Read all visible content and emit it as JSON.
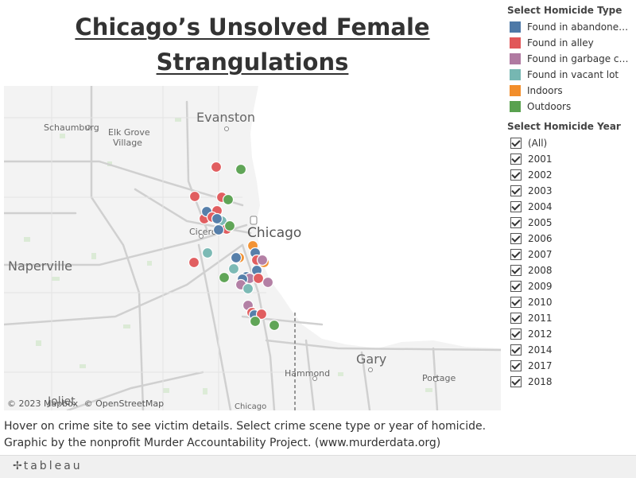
{
  "title": {
    "line1": "Chicago’s Unsolved Female ",
    "line2": "Strangulations"
  },
  "map": {
    "attribution": {
      "mapbox": "© 2023 Mapbox",
      "osm": "© OpenStreetMap"
    },
    "place_labels": {
      "evanston": "Evanston",
      "schaumburg": "Schaumburg",
      "elk_grove": "Elk Grove",
      "village": "Village",
      "cicero": "Cicero",
      "chicago": "Chicago",
      "naperville": "Naperville",
      "gary": "Gary",
      "hammond": "Hammond",
      "portage": "Portage",
      "chicago_heights": "Chicago",
      "joliet": "Joliet"
    }
  },
  "type_legend": {
    "title": "Select Homicide Type",
    "items": [
      {
        "label": "Found in abandoned ...",
        "color": "#4e79a7"
      },
      {
        "label": "Found in alley",
        "color": "#e15759"
      },
      {
        "label": "Found in garbage can",
        "color": "#b07aa1"
      },
      {
        "label": "Found in vacant lot",
        "color": "#76b7b2"
      },
      {
        "label": "Indoors",
        "color": "#f28e2b"
      },
      {
        "label": "Outdoors",
        "color": "#59a14f"
      }
    ]
  },
  "year_filter": {
    "title": "Select Homicide Year",
    "items": [
      "(All)",
      "2001",
      "2002",
      "2003",
      "2004",
      "2005",
      "2006",
      "2007",
      "2008",
      "2009",
      "2010",
      "2011",
      "2012",
      "2014",
      "2017",
      "2018"
    ]
  },
  "caption": {
    "line1": "Hover on crime site to see victim details. Select crime scene type or year of homicide.",
    "line2": "Graphic by the nonprofit Murder Accountability Project. (www.murderdata.org)"
  },
  "footer": {
    "brand": "tableau"
  }
}
